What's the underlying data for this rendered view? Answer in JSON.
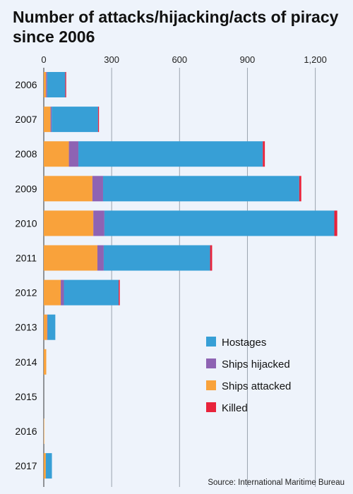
{
  "chart_data": {
    "type": "bar",
    "orientation": "horizontal",
    "stacked": true,
    "title": "Number of attacks/hijacking/acts of piracy since 2006",
    "xlim": [
      0,
      1300
    ],
    "xticks": [
      0,
      300,
      600,
      900,
      1200
    ],
    "xtick_labels": [
      "0",
      "300",
      "600",
      "900",
      "1,200"
    ],
    "grid": true,
    "legend_position": "right",
    "categories": [
      "2006",
      "2007",
      "2008",
      "2009",
      "2010",
      "2011",
      "2012",
      "2013",
      "2014",
      "2015",
      "2016",
      "2017"
    ],
    "series": [
      {
        "name": "Ships attacked",
        "color": "#f9a23b",
        "values": [
          10,
          30,
          111,
          215,
          219,
          237,
          75,
          15,
          11,
          0,
          2,
          9
        ]
      },
      {
        "name": "Ships hijacked",
        "color": "#8e63b3",
        "values": [
          5,
          5,
          42,
          47,
          49,
          28,
          14,
          2,
          0,
          0,
          0,
          0
        ]
      },
      {
        "name": "Hostages",
        "color": "#379fd6",
        "values": [
          80,
          205,
          815,
          867,
          1016,
          470,
          242,
          34,
          0,
          0,
          0,
          27
        ]
      },
      {
        "name": "Killed",
        "color": "#e8233b",
        "values": [
          4,
          4,
          9,
          9,
          13,
          9,
          5,
          0,
          0,
          0,
          0,
          0
        ]
      }
    ],
    "legend_order": [
      "Hostages",
      "Ships hijacked",
      "Ships attacked",
      "Killed"
    ]
  },
  "source_text": "Source: International Maritime Bureau"
}
